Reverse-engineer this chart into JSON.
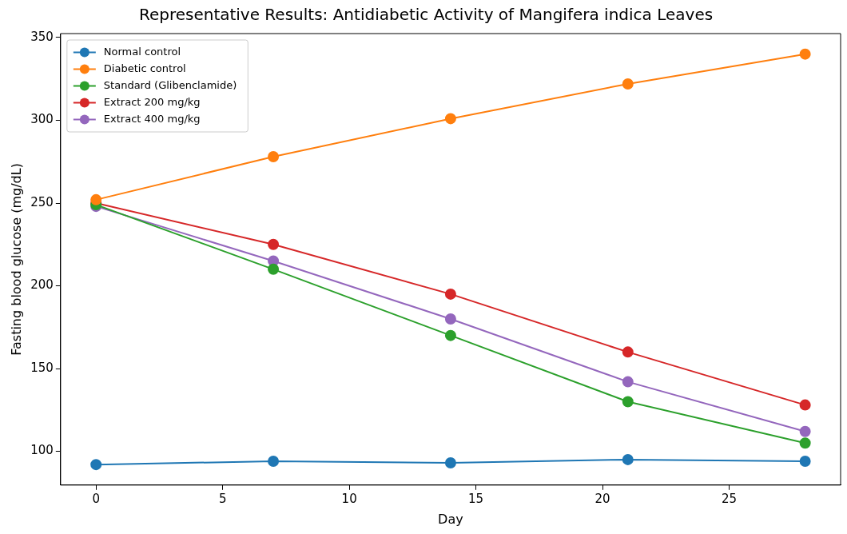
{
  "chart_data": {
    "type": "line",
    "title": "Representative Results: Antidiabetic Activity of Mangifera indica Leaves",
    "xlabel": "Day",
    "ylabel": "Fasting blood glucose (mg/dL)",
    "x": [
      0,
      7,
      14,
      21,
      28
    ],
    "series": [
      {
        "name": "Normal control",
        "color": "#1f77b4",
        "values": [
          92,
          94,
          93,
          95,
          94
        ]
      },
      {
        "name": "Diabetic control",
        "color": "#ff7f0e",
        "values": [
          252,
          278,
          301,
          322,
          340
        ]
      },
      {
        "name": "Standard (Glibenclamide)",
        "color": "#2ca02c",
        "values": [
          249,
          210,
          170,
          130,
          105
        ]
      },
      {
        "name": "Extract 200 mg/kg",
        "color": "#d62728",
        "values": [
          250,
          225,
          195,
          160,
          128
        ]
      },
      {
        "name": "Extract 400 mg/kg",
        "color": "#9467bd",
        "values": [
          248,
          215,
          180,
          142,
          112
        ]
      }
    ],
    "xlim": [
      -1.4,
      29.4
    ],
    "ylim": [
      79.6,
      352.4
    ],
    "xticks": [
      0,
      5,
      10,
      15,
      20,
      25
    ],
    "yticks": [
      100,
      150,
      200,
      250,
      300,
      350
    ],
    "grid": false,
    "legend": "top left",
    "marker": "circle",
    "line_style": "solid"
  }
}
